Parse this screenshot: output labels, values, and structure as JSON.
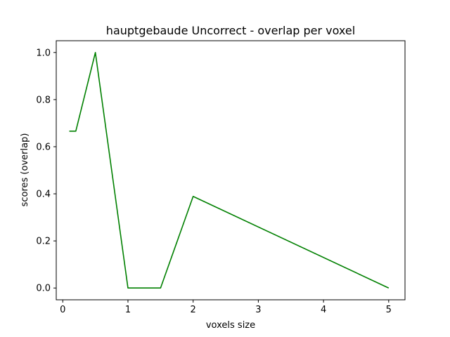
{
  "chart_data": {
    "type": "line",
    "title": "hauptgebaude Uncorrect - overlap per voxel",
    "xlabel": "voxels size",
    "ylabel": "scores (overlap)",
    "xlim": [
      -0.1,
      5.25
    ],
    "ylim": [
      -0.05,
      1.05
    ],
    "xticks": [
      0,
      1,
      2,
      3,
      4,
      5
    ],
    "xtick_labels": [
      "0",
      "1",
      "2",
      "3",
      "4",
      "5"
    ],
    "yticks": [
      0.0,
      0.2,
      0.4,
      0.6,
      0.8,
      1.0
    ],
    "ytick_labels": [
      "0.0",
      "0.2",
      "0.4",
      "0.6",
      "0.8",
      "1.0"
    ],
    "grid": false,
    "series": [
      {
        "color": "#008000",
        "x": [
          0.1,
          0.2,
          0.5,
          1.0,
          1.5,
          2.0,
          5.0
        ],
        "y": [
          0.666,
          0.666,
          1.0,
          0.0,
          0.0,
          0.389,
          0.0
        ]
      }
    ]
  }
}
